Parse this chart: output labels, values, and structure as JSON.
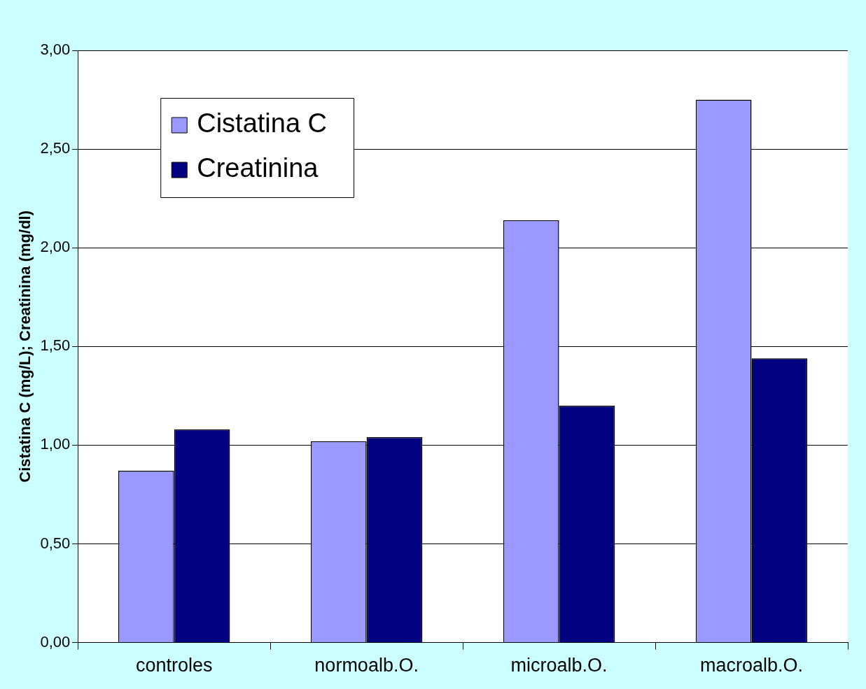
{
  "chart_data": {
    "type": "bar",
    "ylabel": "Cistatina C (mg/L); Creatinina (mg/dl)",
    "categories": [
      "controles",
      "normoalb.O.",
      "microalb.O.",
      "macroalb.O."
    ],
    "series": [
      {
        "name": "Cistatina C",
        "color": "#9999ff",
        "values": [
          0.87,
          1.02,
          2.14,
          2.75
        ]
      },
      {
        "name": "Creatinina",
        "color": "#000080",
        "values": [
          1.08,
          1.04,
          1.2,
          1.44
        ]
      }
    ],
    "ylim": [
      0,
      3
    ],
    "yticks": [
      {
        "value": 0,
        "label": "0,00"
      },
      {
        "value": 0.5,
        "label": "0,50"
      },
      {
        "value": 1,
        "label": "1,00"
      },
      {
        "value": 1.5,
        "label": "1,50"
      },
      {
        "value": 2,
        "label": "2,00"
      },
      {
        "value": 2.5,
        "label": "2,50"
      },
      {
        "value": 3,
        "label": "3,00"
      }
    ],
    "grid": "y",
    "legend": "top left"
  }
}
